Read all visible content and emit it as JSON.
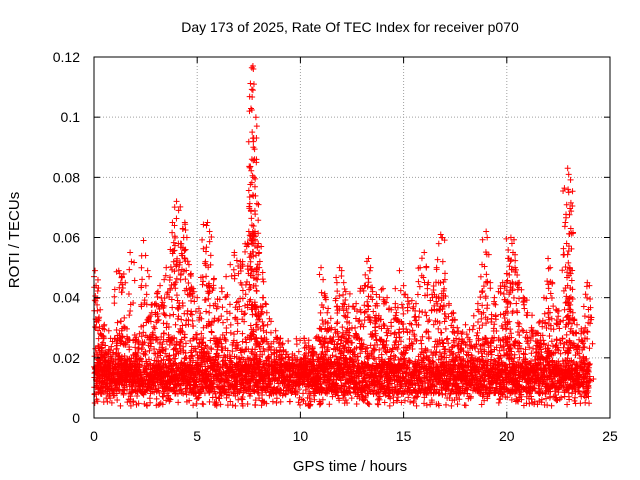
{
  "chart_data": {
    "type": "scatter",
    "title": "Day 173 of 2025, Rate Of TEC Index for receiver p070",
    "xlabel": "GPS time / hours",
    "ylabel": "ROTI / TECUs",
    "xlim": [
      0,
      25
    ],
    "ylim": [
      0,
      0.12
    ],
    "x_ticks": [
      0,
      5,
      10,
      15,
      20,
      25
    ],
    "y_ticks": [
      0,
      0.02,
      0.04,
      0.06,
      0.08,
      0.1,
      0.12
    ],
    "x_tick_labels": [
      "0",
      "5",
      "10",
      "15",
      "20",
      "25"
    ],
    "y_tick_labels": [
      "0",
      "0.02",
      "0.04",
      "0.06",
      "0.08",
      "0.1",
      "0.12"
    ],
    "grid": true,
    "marker": "+",
    "series": [
      {
        "color": "#ff0000",
        "points": [
          [
            0.0,
            0.047
          ],
          [
            0.05,
            0.049
          ],
          [
            0.1,
            0.044
          ],
          [
            0.3,
            0.036
          ],
          [
            0.5,
            0.031
          ],
          [
            0.2,
            0.024
          ],
          [
            0.4,
            0.02
          ],
          [
            0.7,
            0.022
          ],
          [
            0.9,
            0.018
          ],
          [
            1.1,
            0.023
          ],
          [
            1.2,
            0.049
          ],
          [
            1.25,
            0.048
          ],
          [
            1.3,
            0.045
          ],
          [
            1.5,
            0.03
          ],
          [
            1.6,
            0.027
          ],
          [
            1.75,
            0.055
          ],
          [
            1.9,
            0.021
          ],
          [
            2.0,
            0.026
          ],
          [
            2.2,
            0.028
          ],
          [
            2.4,
            0.059
          ],
          [
            2.5,
            0.054
          ],
          [
            2.6,
            0.049
          ],
          [
            2.8,
            0.035
          ],
          [
            3.0,
            0.038
          ],
          [
            3.1,
            0.042
          ],
          [
            3.2,
            0.044
          ],
          [
            3.4,
            0.046
          ],
          [
            3.5,
            0.05
          ],
          [
            3.7,
            0.056
          ],
          [
            3.8,
            0.065
          ],
          [
            3.9,
            0.064
          ],
          [
            4.0,
            0.072
          ],
          [
            4.1,
            0.069
          ],
          [
            4.2,
            0.058
          ],
          [
            4.3,
            0.063
          ],
          [
            4.4,
            0.065
          ],
          [
            4.5,
            0.06
          ],
          [
            4.6,
            0.051
          ],
          [
            4.7,
            0.048
          ],
          [
            4.8,
            0.043
          ],
          [
            5.0,
            0.04
          ],
          [
            5.1,
            0.025
          ],
          [
            5.2,
            0.033
          ],
          [
            5.3,
            0.03
          ],
          [
            5.4,
            0.052
          ],
          [
            5.45,
            0.064
          ],
          [
            5.5,
            0.065
          ],
          [
            5.6,
            0.062
          ],
          [
            5.8,
            0.046
          ],
          [
            6.0,
            0.037
          ],
          [
            6.2,
            0.042
          ],
          [
            6.4,
            0.047
          ],
          [
            6.6,
            0.051
          ],
          [
            6.8,
            0.055
          ],
          [
            7.0,
            0.048
          ],
          [
            7.2,
            0.052
          ],
          [
            7.4,
            0.057
          ],
          [
            7.5,
            0.062
          ],
          [
            7.6,
            0.069
          ],
          [
            7.65,
            0.086
          ],
          [
            7.7,
            0.093
          ],
          [
            7.72,
            0.09
          ],
          [
            7.75,
            0.08
          ],
          [
            7.7,
            0.117
          ],
          [
            7.72,
            0.116
          ],
          [
            7.75,
            0.111
          ],
          [
            7.7,
            0.109
          ],
          [
            7.8,
            0.062
          ],
          [
            8.0,
            0.055
          ],
          [
            8.1,
            0.057
          ],
          [
            8.2,
            0.04
          ],
          [
            8.3,
            0.038
          ],
          [
            8.5,
            0.033
          ],
          [
            8.8,
            0.029
          ],
          [
            9.0,
            0.025
          ],
          [
            9.3,
            0.022
          ],
          [
            9.6,
            0.02
          ],
          [
            10.0,
            0.018
          ],
          [
            10.2,
            0.021
          ],
          [
            10.4,
            0.024
          ],
          [
            10.6,
            0.022
          ],
          [
            10.8,
            0.027
          ],
          [
            11.0,
            0.05
          ],
          [
            11.1,
            0.046
          ],
          [
            11.2,
            0.04
          ],
          [
            11.3,
            0.035
          ],
          [
            11.5,
            0.03
          ],
          [
            11.7,
            0.039
          ],
          [
            11.9,
            0.05
          ],
          [
            12.0,
            0.049
          ],
          [
            12.1,
            0.045
          ],
          [
            12.2,
            0.042
          ],
          [
            12.3,
            0.035
          ],
          [
            12.5,
            0.03
          ],
          [
            12.7,
            0.038
          ],
          [
            12.9,
            0.036
          ],
          [
            13.1,
            0.044
          ],
          [
            13.3,
            0.053
          ],
          [
            13.4,
            0.05
          ],
          [
            13.5,
            0.042
          ],
          [
            13.7,
            0.038
          ],
          [
            13.8,
            0.034
          ],
          [
            14.0,
            0.043
          ],
          [
            14.2,
            0.04
          ],
          [
            14.4,
            0.036
          ],
          [
            14.6,
            0.038
          ],
          [
            14.8,
            0.049
          ],
          [
            15.0,
            0.044
          ],
          [
            15.2,
            0.04
          ],
          [
            15.4,
            0.039
          ],
          [
            15.6,
            0.038
          ],
          [
            15.8,
            0.05
          ],
          [
            16.0,
            0.055
          ],
          [
            16.1,
            0.05
          ],
          [
            16.2,
            0.045
          ],
          [
            16.4,
            0.04
          ],
          [
            16.6,
            0.05
          ],
          [
            16.8,
            0.061
          ],
          [
            16.85,
            0.06
          ],
          [
            16.9,
            0.052
          ],
          [
            17.0,
            0.046
          ],
          [
            17.2,
            0.038
          ],
          [
            17.4,
            0.035
          ],
          [
            17.6,
            0.03
          ],
          [
            17.8,
            0.028
          ],
          [
            18.0,
            0.031
          ],
          [
            18.2,
            0.026
          ],
          [
            18.4,
            0.034
          ],
          [
            18.6,
            0.038
          ],
          [
            18.8,
            0.051
          ],
          [
            19.0,
            0.062
          ],
          [
            19.05,
            0.06
          ],
          [
            19.2,
            0.045
          ],
          [
            19.4,
            0.04
          ],
          [
            19.6,
            0.042
          ],
          [
            19.8,
            0.045
          ],
          [
            20.0,
            0.048
          ],
          [
            20.1,
            0.053
          ],
          [
            20.2,
            0.06
          ],
          [
            20.25,
            0.058
          ],
          [
            20.3,
            0.055
          ],
          [
            20.4,
            0.05
          ],
          [
            20.6,
            0.045
          ],
          [
            20.8,
            0.04
          ],
          [
            21.0,
            0.035
          ],
          [
            21.2,
            0.03
          ],
          [
            21.4,
            0.028
          ],
          [
            21.6,
            0.032
          ],
          [
            21.8,
            0.04
          ],
          [
            22.0,
            0.053
          ],
          [
            22.1,
            0.05
          ],
          [
            22.2,
            0.045
          ],
          [
            22.4,
            0.036
          ],
          [
            22.6,
            0.032
          ],
          [
            22.8,
            0.036
          ],
          [
            22.9,
            0.058
          ],
          [
            22.95,
            0.083
          ],
          [
            23.0,
            0.081
          ],
          [
            22.97,
            0.076
          ],
          [
            23.0,
            0.075
          ],
          [
            23.05,
            0.05
          ],
          [
            23.2,
            0.035
          ],
          [
            23.4,
            0.031
          ],
          [
            23.6,
            0.028
          ],
          [
            23.8,
            0.03
          ],
          [
            23.9,
            0.045
          ],
          [
            24.0,
            0.044
          ]
        ]
      }
    ]
  }
}
